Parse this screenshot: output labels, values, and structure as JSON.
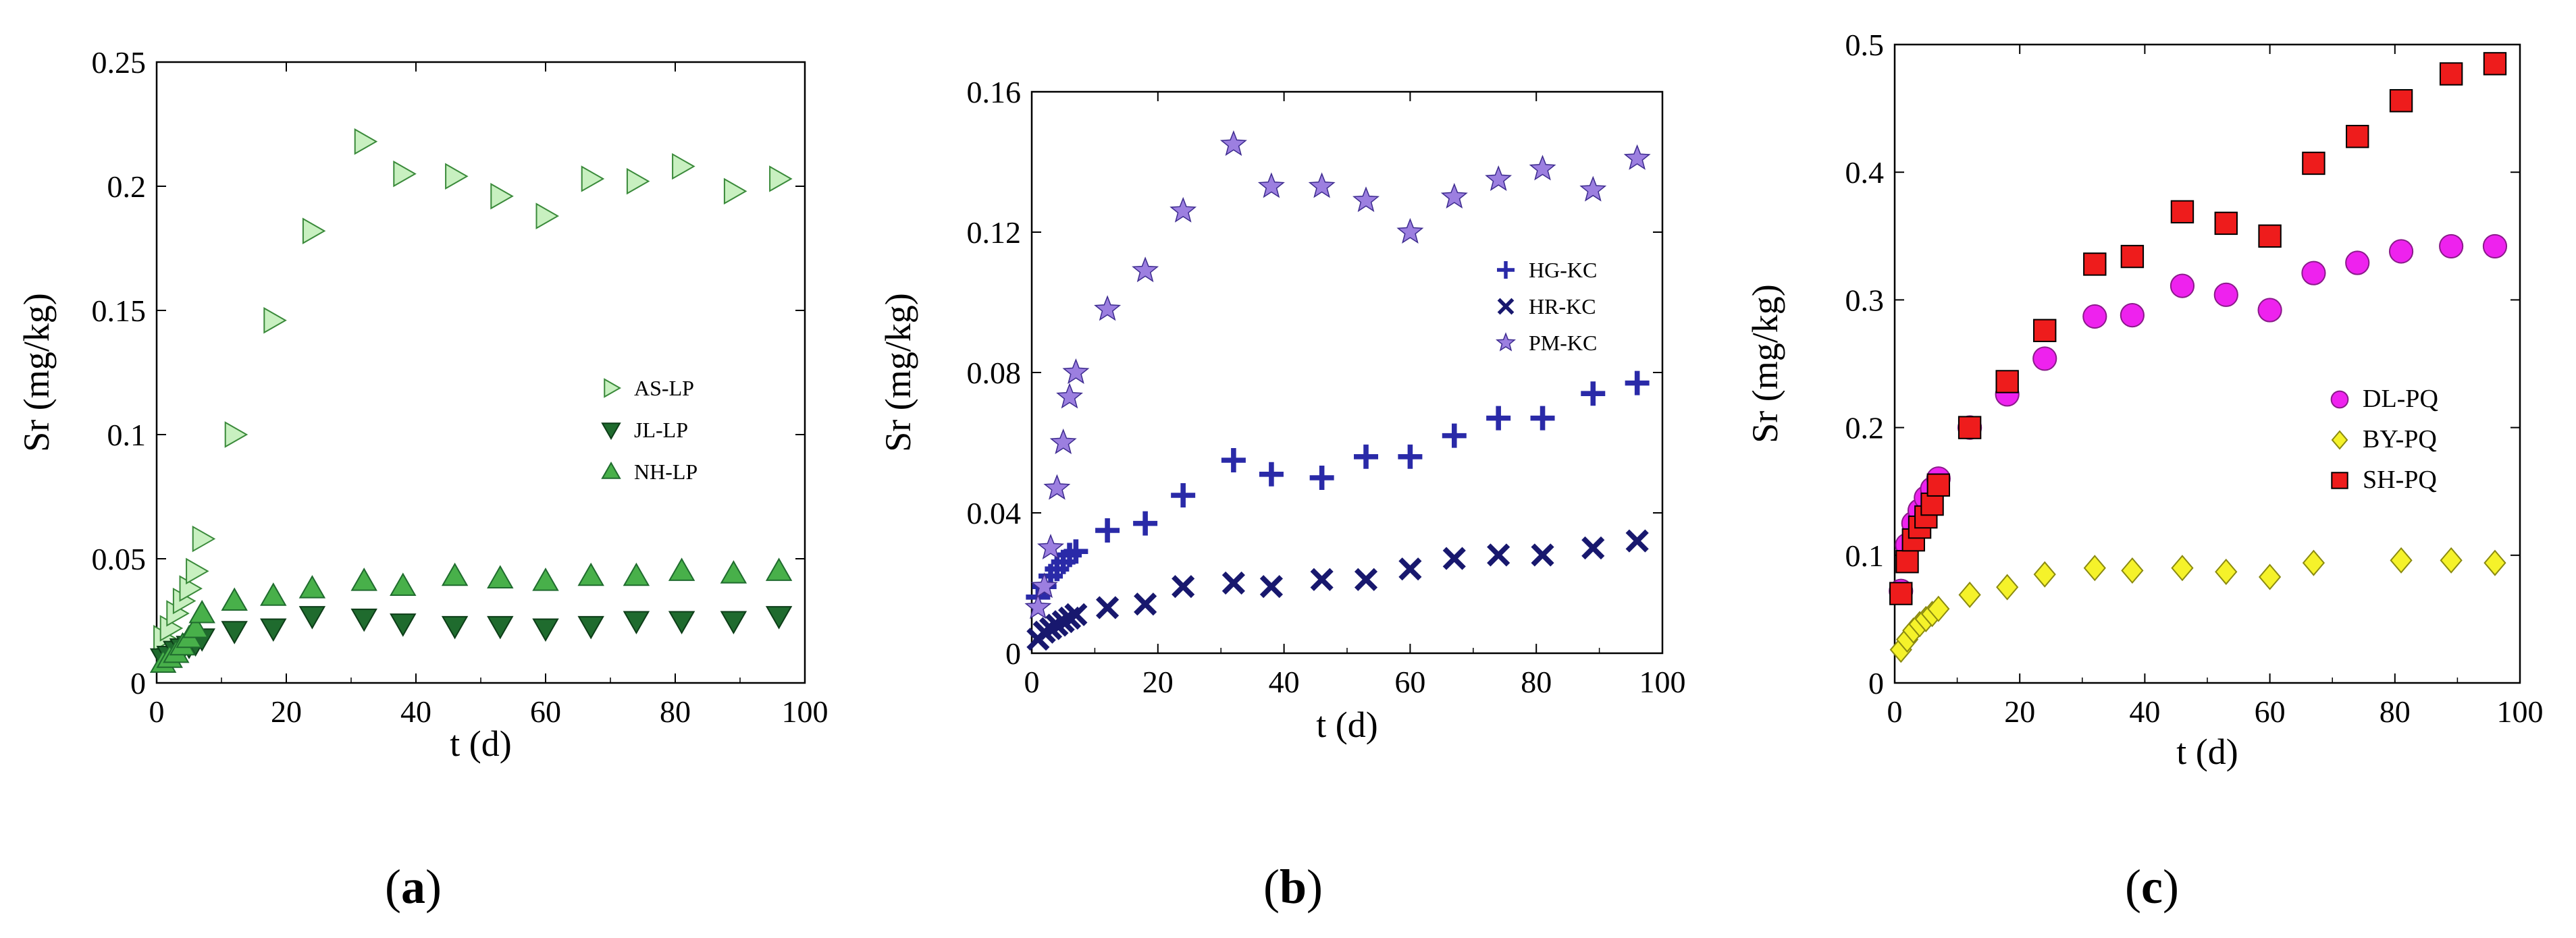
{
  "chart_data": [
    {
      "type": "scatter",
      "panel": "a",
      "caption": {
        "open": "(",
        "letter": "a",
        "close": ")"
      },
      "xlabel": "t  (d)",
      "ylabel": "Sr (mg/kg)",
      "xlim": [
        0,
        100
      ],
      "ylim": [
        0,
        0.25
      ],
      "xticks": [
        "0",
        "20",
        "40",
        "60",
        "80",
        "100"
      ],
      "yticks": [
        "0",
        "0.05",
        "0.1",
        "0.15",
        "0.2",
        "0.25"
      ],
      "xtick_values": [
        0,
        20,
        40,
        60,
        80,
        100
      ],
      "ytick_values": [
        0,
        0.05,
        0.1,
        0.15,
        0.2,
        0.25
      ],
      "legend_position": "center-right",
      "series": [
        {
          "name": "AS-LP",
          "marker": "triangle-right",
          "color": "#c8f0c0",
          "stroke": "#3a8a3a",
          "x": [
            1,
            2,
            3,
            4,
            5,
            6,
            7,
            12,
            18,
            24,
            32,
            38,
            46,
            53,
            60,
            67,
            74,
            81,
            89,
            96
          ],
          "y": [
            0.018,
            0.022,
            0.028,
            0.033,
            0.038,
            0.045,
            0.058,
            0.1,
            0.146,
            0.182,
            0.218,
            0.205,
            0.204,
            0.196,
            0.188,
            0.203,
            0.202,
            0.208,
            0.198,
            0.203
          ]
        },
        {
          "name": "JL-LP",
          "marker": "triangle-down",
          "color": "#1f6b2e",
          "stroke": "#0d3d18",
          "x": [
            1,
            2,
            3,
            4,
            5,
            6,
            7,
            12,
            18,
            24,
            32,
            38,
            46,
            53,
            60,
            67,
            74,
            81,
            89,
            96
          ],
          "y": [
            0.01,
            0.011,
            0.013,
            0.014,
            0.015,
            0.016,
            0.018,
            0.021,
            0.022,
            0.027,
            0.026,
            0.024,
            0.023,
            0.023,
            0.022,
            0.023,
            0.025,
            0.025,
            0.025,
            0.027
          ]
        },
        {
          "name": "NH-LP",
          "marker": "triangle-up",
          "color": "#48b04a",
          "stroke": "#1f6b2e",
          "x": [
            1,
            2,
            3,
            4,
            5,
            6,
            7,
            12,
            18,
            24,
            32,
            38,
            46,
            53,
            60,
            67,
            74,
            81,
            89,
            96
          ],
          "y": [
            0.008,
            0.01,
            0.012,
            0.015,
            0.018,
            0.022,
            0.028,
            0.033,
            0.035,
            0.038,
            0.041,
            0.039,
            0.043,
            0.042,
            0.041,
            0.043,
            0.043,
            0.045,
            0.044,
            0.045
          ]
        }
      ],
      "legend": [
        "AS-LP",
        "JL-LP",
        "NH-LP"
      ]
    },
    {
      "type": "scatter",
      "panel": "b",
      "caption": {
        "open": "(",
        "letter": "b",
        "close": ")"
      },
      "xlabel": "t  (d)",
      "ylabel": "Sr (mg/kg)",
      "xlim": [
        0,
        100
      ],
      "ylim": [
        0,
        0.16
      ],
      "xticks": [
        "0",
        "20",
        "40",
        "60",
        "80",
        "100"
      ],
      "yticks": [
        "0",
        "0.04",
        "0.08",
        "0.12",
        "0.16"
      ],
      "xtick_values": [
        0,
        20,
        40,
        60,
        80,
        100
      ],
      "ytick_values": [
        0,
        0.04,
        0.08,
        0.12,
        0.16
      ],
      "legend_position": "center-right",
      "series": [
        {
          "name": "HG-KC",
          "marker": "plus",
          "color": "#2a2aa8",
          "x": [
            1,
            2,
            3,
            4,
            5,
            6,
            7,
            12,
            18,
            24,
            32,
            38,
            46,
            53,
            60,
            67,
            74,
            81,
            89,
            96
          ],
          "y": [
            0.016,
            0.019,
            0.022,
            0.024,
            0.026,
            0.028,
            0.029,
            0.035,
            0.037,
            0.045,
            0.055,
            0.051,
            0.05,
            0.056,
            0.056,
            0.062,
            0.067,
            0.067,
            0.074,
            0.077
          ]
        },
        {
          "name": "HR-KC",
          "marker": "cross",
          "color": "#18186e",
          "x": [
            1,
            2,
            3,
            4,
            5,
            6,
            7,
            12,
            18,
            24,
            32,
            38,
            46,
            53,
            60,
            67,
            74,
            81,
            89,
            96
          ],
          "y": [
            0.004,
            0.006,
            0.007,
            0.008,
            0.009,
            0.01,
            0.011,
            0.013,
            0.014,
            0.019,
            0.02,
            0.019,
            0.021,
            0.021,
            0.024,
            0.027,
            0.028,
            0.028,
            0.03,
            0.032
          ]
        },
        {
          "name": "PM-KC",
          "marker": "star",
          "color": "#9c7fe0",
          "stroke": "#3d2b8f",
          "x": [
            1,
            2,
            3,
            4,
            5,
            6,
            7,
            12,
            18,
            24,
            32,
            38,
            46,
            53,
            60,
            67,
            74,
            81,
            89,
            96
          ],
          "y": [
            0.013,
            0.019,
            0.03,
            0.047,
            0.06,
            0.073,
            0.08,
            0.098,
            0.109,
            0.126,
            0.145,
            0.133,
            0.133,
            0.129,
            0.12,
            0.13,
            0.135,
            0.138,
            0.132,
            0.141
          ]
        }
      ],
      "legend": [
        "HG-KC",
        "HR-KC",
        "PM-KC"
      ]
    },
    {
      "type": "scatter",
      "panel": "c",
      "caption": {
        "open": "(",
        "letter": "c",
        "close": ")"
      },
      "xlabel": "t  (d)",
      "ylabel": "Sr (mg/kg)",
      "xlim": [
        0,
        100
      ],
      "ylim": [
        0,
        0.5
      ],
      "xticks": [
        "0",
        "20",
        "40",
        "60",
        "80",
        "100"
      ],
      "yticks": [
        "0",
        "0.1",
        "0.2",
        "0.3",
        "0.4",
        "0.5"
      ],
      "xtick_values": [
        0,
        20,
        40,
        60,
        80,
        100
      ],
      "ytick_values": [
        0,
        0.1,
        0.2,
        0.3,
        0.4,
        0.5
      ],
      "legend_position": "center-right",
      "series": [
        {
          "name": "DL-PQ",
          "marker": "circle",
          "color": "#ee22ee",
          "stroke": "#8a1a8a",
          "x": [
            1,
            2,
            3,
            4,
            5,
            6,
            7,
            12,
            18,
            24,
            32,
            38,
            46,
            53,
            60,
            67,
            74,
            81,
            89,
            96
          ],
          "y": [
            0.072,
            0.108,
            0.125,
            0.135,
            0.145,
            0.152,
            0.16,
            0.2,
            0.226,
            0.254,
            0.287,
            0.288,
            0.311,
            0.304,
            0.292,
            0.321,
            0.329,
            0.338,
            0.342,
            0.342
          ]
        },
        {
          "name": "BY-PQ",
          "marker": "diamond",
          "color": "#f5f22a",
          "stroke": "#8a8a10",
          "x": [
            1,
            2,
            3,
            4,
            5,
            6,
            7,
            12,
            18,
            24,
            32,
            38,
            46,
            53,
            60,
            67,
            74,
            81,
            89,
            96
          ],
          "y": [
            0.026,
            0.034,
            0.041,
            0.046,
            0.05,
            0.054,
            0.058,
            0.069,
            0.075,
            0.085,
            0.09,
            0.088,
            0.09,
            0.087,
            0.083,
            0.094,
            null,
            0.096,
            0.096,
            0.094
          ]
        },
        {
          "name": "SH-PQ",
          "marker": "square",
          "color": "#ee1c1c",
          "stroke": "#000000",
          "x": [
            1,
            2,
            3,
            4,
            5,
            6,
            7,
            12,
            18,
            24,
            32,
            38,
            46,
            53,
            60,
            67,
            74,
            81,
            89,
            96
          ],
          "y": [
            0.07,
            0.095,
            0.112,
            0.122,
            0.13,
            0.14,
            0.155,
            0.2,
            0.236,
            0.276,
            0.328,
            0.334,
            0.369,
            0.36,
            0.35,
            0.407,
            0.428,
            0.456,
            0.477,
            0.485
          ]
        }
      ],
      "legend": [
        "DL-PQ",
        "BY-PQ",
        "SH-PQ"
      ]
    }
  ]
}
